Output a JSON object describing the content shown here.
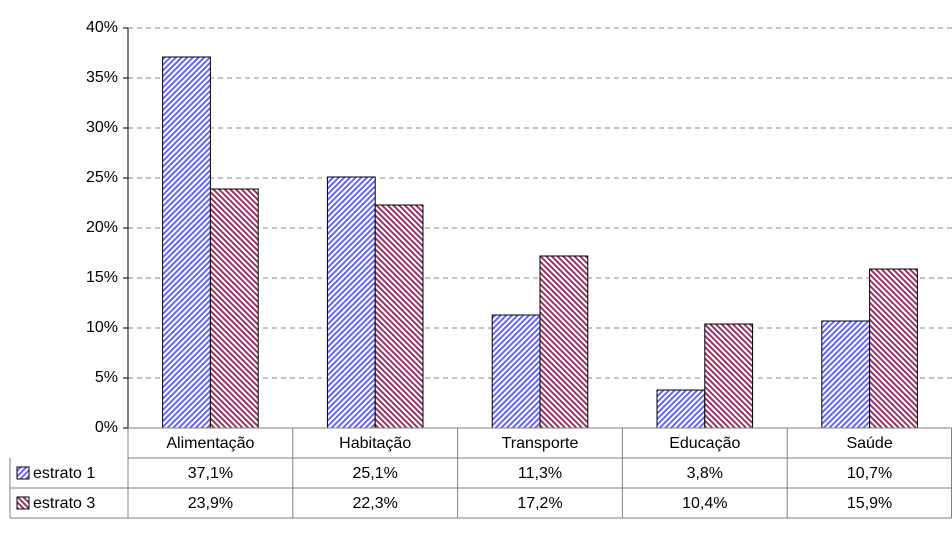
{
  "chart_data": {
    "type": "bar",
    "categories": [
      "Alimentação",
      "Habitação",
      "Transporte",
      "Educação",
      "Saúde"
    ],
    "series": [
      {
        "name": "estrato 1",
        "color": "#6666ff",
        "values": [
          37.1,
          25.1,
          11.3,
          3.8,
          10.7
        ],
        "value_labels": [
          "37,1%",
          "25,1%",
          "11,3%",
          "3,8%",
          "10,7%"
        ]
      },
      {
        "name": "estrato 3",
        "color": "#993366",
        "values": [
          23.9,
          22.3,
          17.2,
          10.4,
          15.9
        ],
        "value_labels": [
          "23,9%",
          "22,3%",
          "17,2%",
          "10,4%",
          "15,9%"
        ]
      }
    ],
    "ylim": [
      0,
      40
    ],
    "yticks": [
      {
        "value": 0,
        "label": "0%"
      },
      {
        "value": 5,
        "label": "5%"
      },
      {
        "value": 10,
        "label": "10%"
      },
      {
        "value": 15,
        "label": "15%"
      },
      {
        "value": 20,
        "label": "20%"
      },
      {
        "value": 25,
        "label": "25%"
      },
      {
        "value": 30,
        "label": "30%"
      },
      {
        "value": 35,
        "label": "35%"
      },
      {
        "value": 40,
        "label": "40%"
      }
    ],
    "grid": true
  }
}
